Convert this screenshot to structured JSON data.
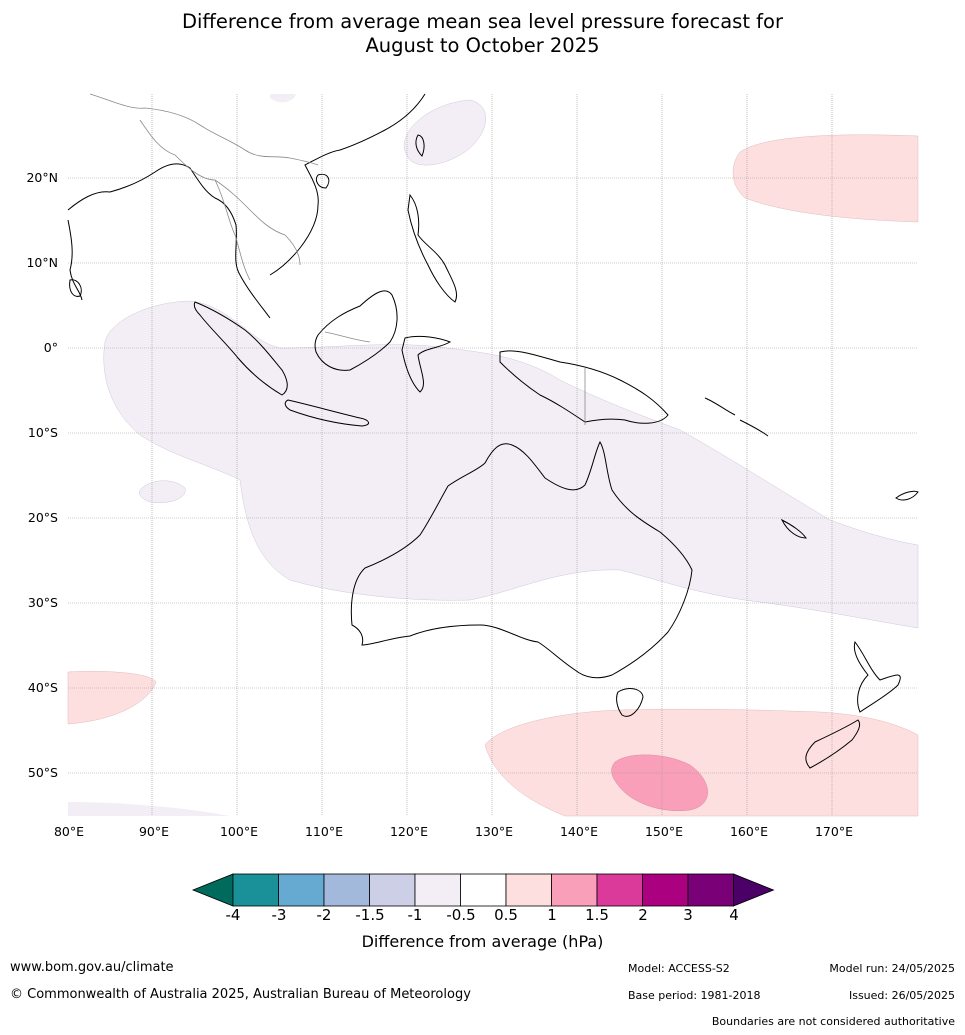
{
  "title_line1": "Difference from average mean sea level pressure forecast for",
  "title_line2": "August to October 2025",
  "lat_labels": [
    "20°N",
    "10°N",
    "0°",
    "10°S",
    "20°S",
    "30°S",
    "40°S",
    "50°S"
  ],
  "lon_labels": [
    "80°E",
    "90°E",
    "100°E",
    "110°E",
    "120°E",
    "130°E",
    "140°E",
    "150°E",
    "160°E",
    "170°E"
  ],
  "colorbar": {
    "ticks": [
      "-4",
      "-3",
      "-2",
      "-1.5",
      "-1",
      "-0.5",
      "0.5",
      "1",
      "1.5",
      "2",
      "3",
      "4"
    ],
    "colors": [
      "#1a9199",
      "#67aad1",
      "#a3b9db",
      "#cccfe6",
      "#f3eef6",
      "#ffffff",
      "#fddfdf",
      "#f99fb9",
      "#dc3a9b",
      "#ab0080",
      "#7a0077"
    ],
    "under_color": "#006a5c",
    "over_color": "#4b0068",
    "label": "Difference from average (hPa)"
  },
  "footer": {
    "website": "www.bom.gov.au/climate",
    "copyright": "© Commonwealth of Australia 2025, Australian Bureau of Meteorology",
    "model": "Model: ACCESS-S2",
    "base_period": "Base period: 1981-2018",
    "model_run": "Model run: 24/05/2025",
    "issued": "Issued: 26/05/2025",
    "disclaimer": "Boundaries are not considered authoritative"
  }
}
